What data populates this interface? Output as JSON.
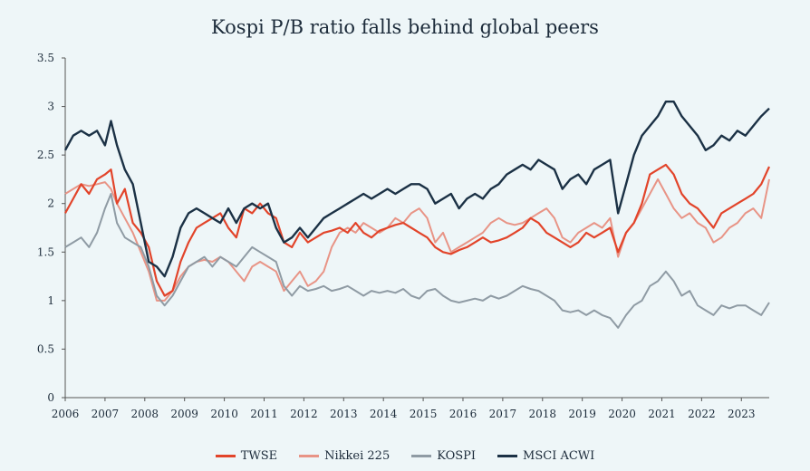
{
  "chart_data": {
    "type": "line",
    "title": "Kospi P/B ratio falls behind global peers",
    "xlabel": "",
    "ylabel": "",
    "xlim": [
      2006,
      2023.7
    ],
    "ylim": [
      0,
      3.5
    ],
    "y_ticks": [
      "0",
      "0.5",
      "1",
      "1.5",
      "2",
      "2.5",
      "3",
      "3.5"
    ],
    "y_tick_values": [
      0,
      0.5,
      1,
      1.5,
      2,
      2.5,
      3,
      3.5
    ],
    "x_ticks": [
      "2006",
      "2007",
      "2008",
      "2009",
      "2010",
      "2011",
      "2012",
      "2013",
      "2014",
      "2015",
      "2016",
      "2017",
      "2018",
      "2019",
      "2020",
      "2021",
      "2022",
      "2023"
    ],
    "x_tick_values": [
      2006,
      2007,
      2008,
      2009,
      2010,
      2011,
      2012,
      2013,
      2014,
      2015,
      2016,
      2017,
      2018,
      2019,
      2020,
      2021,
      2022,
      2023
    ],
    "grid": false,
    "legend_position": "bottom",
    "series": [
      {
        "name": "TWSE",
        "color": "#e2442a",
        "x": [
          2006.0,
          2006.2,
          2006.4,
          2006.6,
          2006.8,
          2007.0,
          2007.15,
          2007.3,
          2007.5,
          2007.7,
          2007.9,
          2008.1,
          2008.3,
          2008.5,
          2008.7,
          2008.9,
          2009.1,
          2009.3,
          2009.5,
          2009.7,
          2009.9,
          2010.1,
          2010.3,
          2010.5,
          2010.7,
          2010.9,
          2011.1,
          2011.3,
          2011.5,
          2011.7,
          2011.9,
          2012.1,
          2012.3,
          2012.5,
          2012.7,
          2012.9,
          2013.1,
          2013.3,
          2013.5,
          2013.7,
          2013.9,
          2014.1,
          2014.3,
          2014.5,
          2014.7,
          2014.9,
          2015.1,
          2015.3,
          2015.5,
          2015.7,
          2015.9,
          2016.1,
          2016.3,
          2016.5,
          2016.7,
          2016.9,
          2017.1,
          2017.3,
          2017.5,
          2017.7,
          2017.9,
          2018.1,
          2018.3,
          2018.5,
          2018.7,
          2018.9,
          2019.1,
          2019.3,
          2019.5,
          2019.7,
          2019.9,
          2020.1,
          2020.3,
          2020.5,
          2020.7,
          2020.9,
          2021.1,
          2021.3,
          2021.5,
          2021.7,
          2021.9,
          2022.1,
          2022.3,
          2022.5,
          2022.7,
          2022.9,
          2023.1,
          2023.3,
          2023.5,
          2023.7
        ],
        "values": [
          1.9,
          2.05,
          2.2,
          2.1,
          2.25,
          2.3,
          2.35,
          2.0,
          2.15,
          1.8,
          1.7,
          1.55,
          1.2,
          1.05,
          1.1,
          1.4,
          1.6,
          1.75,
          1.8,
          1.85,
          1.9,
          1.75,
          1.65,
          1.95,
          1.9,
          2.0,
          1.9,
          1.85,
          1.6,
          1.55,
          1.7,
          1.6,
          1.65,
          1.7,
          1.72,
          1.75,
          1.7,
          1.8,
          1.7,
          1.65,
          1.72,
          1.75,
          1.78,
          1.8,
          1.75,
          1.7,
          1.65,
          1.55,
          1.5,
          1.48,
          1.52,
          1.55,
          1.6,
          1.65,
          1.6,
          1.62,
          1.65,
          1.7,
          1.75,
          1.85,
          1.8,
          1.7,
          1.65,
          1.6,
          1.55,
          1.6,
          1.7,
          1.65,
          1.7,
          1.75,
          1.5,
          1.7,
          1.8,
          2.0,
          2.3,
          2.35,
          2.4,
          2.3,
          2.1,
          2.0,
          1.95,
          1.85,
          1.75,
          1.9,
          1.95,
          2.0,
          2.05,
          2.1,
          2.2,
          2.38
        ]
      },
      {
        "name": "Nikkei 225",
        "color": "#e89486",
        "x": [
          2006.0,
          2006.2,
          2006.4,
          2006.6,
          2006.8,
          2007.0,
          2007.15,
          2007.3,
          2007.5,
          2007.7,
          2007.9,
          2008.1,
          2008.3,
          2008.5,
          2008.7,
          2008.9,
          2009.1,
          2009.3,
          2009.5,
          2009.7,
          2009.9,
          2010.1,
          2010.3,
          2010.5,
          2010.7,
          2010.9,
          2011.1,
          2011.3,
          2011.5,
          2011.7,
          2011.9,
          2012.1,
          2012.3,
          2012.5,
          2012.7,
          2012.9,
          2013.1,
          2013.3,
          2013.5,
          2013.7,
          2013.9,
          2014.1,
          2014.3,
          2014.5,
          2014.7,
          2014.9,
          2015.1,
          2015.3,
          2015.5,
          2015.7,
          2015.9,
          2016.1,
          2016.3,
          2016.5,
          2016.7,
          2016.9,
          2017.1,
          2017.3,
          2017.5,
          2017.7,
          2017.9,
          2018.1,
          2018.3,
          2018.5,
          2018.7,
          2018.9,
          2019.1,
          2019.3,
          2019.5,
          2019.7,
          2019.9,
          2020.1,
          2020.3,
          2020.5,
          2020.7,
          2020.9,
          2021.1,
          2021.3,
          2021.5,
          2021.7,
          2021.9,
          2022.1,
          2022.3,
          2022.5,
          2022.7,
          2022.9,
          2023.1,
          2023.3,
          2023.5,
          2023.7
        ],
        "values": [
          2.1,
          2.15,
          2.2,
          2.18,
          2.2,
          2.22,
          2.15,
          2.0,
          1.85,
          1.7,
          1.5,
          1.3,
          1.0,
          1.0,
          1.1,
          1.25,
          1.35,
          1.4,
          1.42,
          1.4,
          1.45,
          1.4,
          1.3,
          1.2,
          1.35,
          1.4,
          1.35,
          1.3,
          1.1,
          1.2,
          1.3,
          1.15,
          1.2,
          1.3,
          1.55,
          1.7,
          1.75,
          1.7,
          1.8,
          1.75,
          1.7,
          1.75,
          1.85,
          1.8,
          1.9,
          1.95,
          1.85,
          1.6,
          1.7,
          1.5,
          1.55,
          1.6,
          1.65,
          1.7,
          1.8,
          1.85,
          1.8,
          1.78,
          1.8,
          1.85,
          1.9,
          1.95,
          1.85,
          1.65,
          1.6,
          1.7,
          1.75,
          1.8,
          1.75,
          1.85,
          1.45,
          1.7,
          1.8,
          1.95,
          2.1,
          2.25,
          2.1,
          1.95,
          1.85,
          1.9,
          1.8,
          1.75,
          1.6,
          1.65,
          1.75,
          1.8,
          1.9,
          1.95,
          1.85,
          2.25
        ]
      },
      {
        "name": "KOSPI",
        "color": "#8f9ba4",
        "x": [
          2006.0,
          2006.2,
          2006.4,
          2006.6,
          2006.8,
          2007.0,
          2007.15,
          2007.3,
          2007.5,
          2007.7,
          2007.9,
          2008.1,
          2008.3,
          2008.5,
          2008.7,
          2008.9,
          2009.1,
          2009.3,
          2009.5,
          2009.7,
          2009.9,
          2010.1,
          2010.3,
          2010.5,
          2010.7,
          2010.9,
          2011.1,
          2011.3,
          2011.5,
          2011.7,
          2011.9,
          2012.1,
          2012.3,
          2012.5,
          2012.7,
          2012.9,
          2013.1,
          2013.3,
          2013.5,
          2013.7,
          2013.9,
          2014.1,
          2014.3,
          2014.5,
          2014.7,
          2014.9,
          2015.1,
          2015.3,
          2015.5,
          2015.7,
          2015.9,
          2016.1,
          2016.3,
          2016.5,
          2016.7,
          2016.9,
          2017.1,
          2017.3,
          2017.5,
          2017.7,
          2017.9,
          2018.1,
          2018.3,
          2018.5,
          2018.7,
          2018.9,
          2019.1,
          2019.3,
          2019.5,
          2019.7,
          2019.9,
          2020.1,
          2020.3,
          2020.5,
          2020.7,
          2020.9,
          2021.1,
          2021.3,
          2021.5,
          2021.7,
          2021.9,
          2022.1,
          2022.3,
          2022.5,
          2022.7,
          2022.9,
          2023.1,
          2023.3,
          2023.5,
          2023.7
        ],
        "values": [
          1.55,
          1.6,
          1.65,
          1.55,
          1.7,
          1.95,
          2.1,
          1.8,
          1.65,
          1.6,
          1.55,
          1.35,
          1.05,
          0.95,
          1.05,
          1.2,
          1.35,
          1.4,
          1.45,
          1.35,
          1.45,
          1.4,
          1.35,
          1.45,
          1.55,
          1.5,
          1.45,
          1.4,
          1.15,
          1.05,
          1.15,
          1.1,
          1.12,
          1.15,
          1.1,
          1.12,
          1.15,
          1.1,
          1.05,
          1.1,
          1.08,
          1.1,
          1.08,
          1.12,
          1.05,
          1.02,
          1.1,
          1.12,
          1.05,
          1.0,
          0.98,
          1.0,
          1.02,
          1.0,
          1.05,
          1.02,
          1.05,
          1.1,
          1.15,
          1.12,
          1.1,
          1.05,
          1.0,
          0.9,
          0.88,
          0.9,
          0.85,
          0.9,
          0.85,
          0.82,
          0.72,
          0.85,
          0.95,
          1.0,
          1.15,
          1.2,
          1.3,
          1.2,
          1.05,
          1.1,
          0.95,
          0.9,
          0.85,
          0.95,
          0.92,
          0.95,
          0.95,
          0.9,
          0.85,
          0.98
        ]
      },
      {
        "name": "MSCI ACWI",
        "color": "#1b3145",
        "x": [
          2006.0,
          2006.2,
          2006.4,
          2006.6,
          2006.8,
          2007.0,
          2007.15,
          2007.3,
          2007.5,
          2007.7,
          2007.9,
          2008.1,
          2008.3,
          2008.5,
          2008.7,
          2008.9,
          2009.1,
          2009.3,
          2009.5,
          2009.7,
          2009.9,
          2010.1,
          2010.3,
          2010.5,
          2010.7,
          2010.9,
          2011.1,
          2011.3,
          2011.5,
          2011.7,
          2011.9,
          2012.1,
          2012.3,
          2012.5,
          2012.7,
          2012.9,
          2013.1,
          2013.3,
          2013.5,
          2013.7,
          2013.9,
          2014.1,
          2014.3,
          2014.5,
          2014.7,
          2014.9,
          2015.1,
          2015.3,
          2015.5,
          2015.7,
          2015.9,
          2016.1,
          2016.3,
          2016.5,
          2016.7,
          2016.9,
          2017.1,
          2017.3,
          2017.5,
          2017.7,
          2017.9,
          2018.1,
          2018.3,
          2018.5,
          2018.7,
          2018.9,
          2019.1,
          2019.3,
          2019.5,
          2019.7,
          2019.9,
          2020.1,
          2020.3,
          2020.5,
          2020.7,
          2020.9,
          2021.1,
          2021.3,
          2021.5,
          2021.7,
          2021.9,
          2022.1,
          2022.3,
          2022.5,
          2022.7,
          2022.9,
          2023.1,
          2023.3,
          2023.5,
          2023.7
        ],
        "values": [
          2.55,
          2.7,
          2.75,
          2.7,
          2.75,
          2.6,
          2.85,
          2.6,
          2.35,
          2.2,
          1.8,
          1.4,
          1.35,
          1.25,
          1.45,
          1.75,
          1.9,
          1.95,
          1.9,
          1.85,
          1.8,
          1.95,
          1.8,
          1.95,
          2.0,
          1.95,
          2.0,
          1.75,
          1.6,
          1.65,
          1.75,
          1.65,
          1.75,
          1.85,
          1.9,
          1.95,
          2.0,
          2.05,
          2.1,
          2.05,
          2.1,
          2.15,
          2.1,
          2.15,
          2.2,
          2.2,
          2.15,
          2.0,
          2.05,
          2.1,
          1.95,
          2.05,
          2.1,
          2.05,
          2.15,
          2.2,
          2.3,
          2.35,
          2.4,
          2.35,
          2.45,
          2.4,
          2.35,
          2.15,
          2.25,
          2.3,
          2.2,
          2.35,
          2.4,
          2.45,
          1.9,
          2.2,
          2.5,
          2.7,
          2.8,
          2.9,
          3.05,
          3.05,
          2.9,
          2.8,
          2.7,
          2.55,
          2.6,
          2.7,
          2.65,
          2.75,
          2.7,
          2.8,
          2.9,
          2.98
        ]
      }
    ]
  }
}
